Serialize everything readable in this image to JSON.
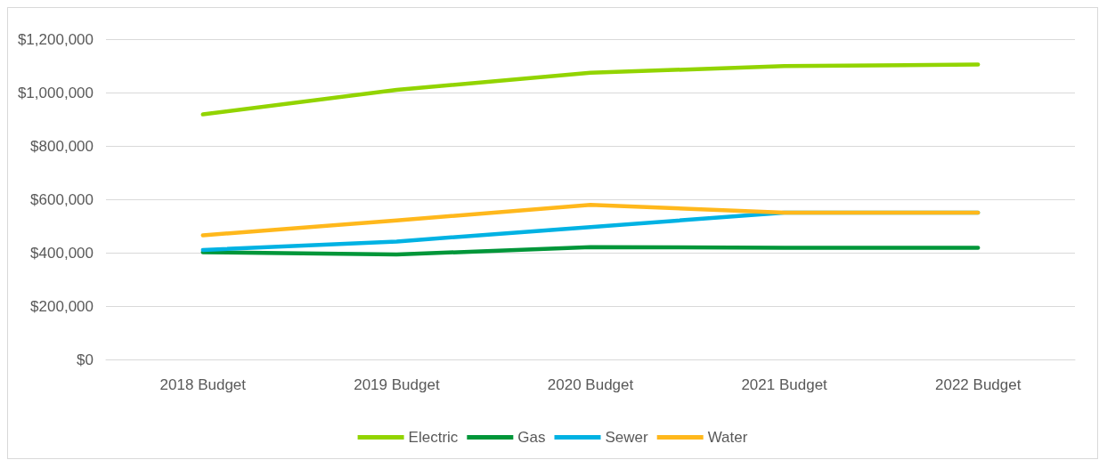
{
  "chart_data": {
    "type": "line",
    "categories": [
      "2018 Budget",
      "2019 Budget",
      "2020 Budget",
      "2021 Budget",
      "2022 Budget"
    ],
    "series": [
      {
        "name": "Electric",
        "color": "#92d400",
        "values": [
          918000,
          1010000,
          1074000,
          1099000,
          1105000
        ]
      },
      {
        "name": "Gas",
        "color": "#009639",
        "values": [
          402000,
          393000,
          421000,
          418000,
          418000
        ]
      },
      {
        "name": "Sewer",
        "color": "#00b2e3",
        "values": [
          410000,
          442000,
          496000,
          550000,
          550000
        ]
      },
      {
        "name": "Water",
        "color": "#ffb81c",
        "values": [
          465000,
          521000,
          579000,
          550000,
          550000
        ]
      }
    ],
    "ylim": [
      0,
      1200000
    ],
    "yticks": [
      {
        "value": 0,
        "label": "$0"
      },
      {
        "value": 200000,
        "label": "$200,000"
      },
      {
        "value": 400000,
        "label": "$400,000"
      },
      {
        "value": 600000,
        "label": "$600,000"
      },
      {
        "value": 800000,
        "label": "$800,000"
      },
      {
        "value": 1000000,
        "label": "$1,000,000"
      },
      {
        "value": 1200000,
        "label": "$1,200,000"
      }
    ],
    "grid": "y",
    "legend": "bottom",
    "marker": "none",
    "line_style": "solid"
  }
}
